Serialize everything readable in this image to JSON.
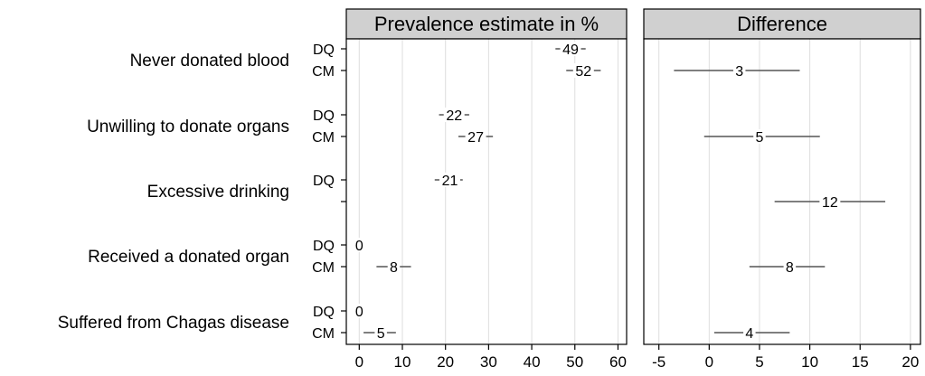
{
  "chart_data": {
    "type": "dot-ci",
    "items": [
      {
        "label": "Never donated blood",
        "estimates": [
          {
            "method": "DQ",
            "value": 49,
            "low": 45.5,
            "high": 52.5
          },
          {
            "method": "CM",
            "value": 52,
            "low": 48,
            "high": 56
          }
        ],
        "difference": {
          "value": 3,
          "low": -3.5,
          "high": 9
        }
      },
      {
        "label": "Unwilling to donate organs",
        "estimates": [
          {
            "method": "DQ",
            "value": 22,
            "low": 18.5,
            "high": 25.5
          },
          {
            "method": "CM",
            "value": 27,
            "low": 23,
            "high": 31
          }
        ],
        "difference": {
          "value": 5,
          "low": -0.5,
          "high": 11
        }
      },
      {
        "label": "Excessive drinking",
        "estimates": [
          {
            "method": "DQ",
            "value": 21,
            "low": 17.5,
            "high": 24
          }
        ],
        "difference": {
          "value": 12,
          "low": 6.5,
          "high": 17.5
        }
      },
      {
        "label": "Received a donated organ",
        "estimates": [
          {
            "method": "DQ",
            "value": 0,
            "low": 0,
            "high": 0
          },
          {
            "method": "CM",
            "value": 8,
            "low": 4,
            "high": 12
          }
        ],
        "difference": {
          "value": 8,
          "low": 4,
          "high": 11.5
        }
      },
      {
        "label": "Suffered from Chagas disease",
        "estimates": [
          {
            "method": "DQ",
            "value": 0,
            "low": 0,
            "high": 0
          },
          {
            "method": "CM",
            "value": 5,
            "low": 1,
            "high": 8.5
          }
        ],
        "difference": {
          "value": 4,
          "low": 0.5,
          "high": 8
        }
      }
    ],
    "panels": [
      {
        "title": "Prevalence estimate in %",
        "xlim": [
          -3,
          62
        ],
        "ticks": [
          0,
          10,
          20,
          30,
          40,
          50,
          60
        ]
      },
      {
        "title": "Difference",
        "xlim": [
          -6.5,
          21
        ],
        "ticks": [
          -5,
          0,
          5,
          10,
          15,
          20
        ]
      }
    ],
    "grid": true
  }
}
